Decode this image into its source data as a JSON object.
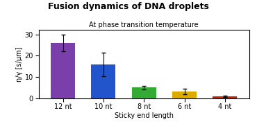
{
  "chart_data": {
    "type": "bar",
    "title": "Fusion dynamics of DNA droplets",
    "subtitle": "At phase transition temperature",
    "categories": [
      "12 nt",
      "10 nt",
      "8 nt",
      "6 nt",
      "4 nt"
    ],
    "values": [
      26.0,
      16.0,
      5.0,
      3.2,
      0.8
    ],
    "errors": [
      4.0,
      5.5,
      0.8,
      1.2,
      0.3
    ],
    "colors": [
      "#7B3FAB",
      "#2255CC",
      "#33AA33",
      "#DDAA00",
      "#CC2200"
    ],
    "xlabel": "Sticky end length",
    "ylabel": "η/γ [s/μm]",
    "ylim": [
      0,
      32
    ],
    "yticks": [
      0,
      10,
      20,
      30
    ],
    "grid": false
  }
}
